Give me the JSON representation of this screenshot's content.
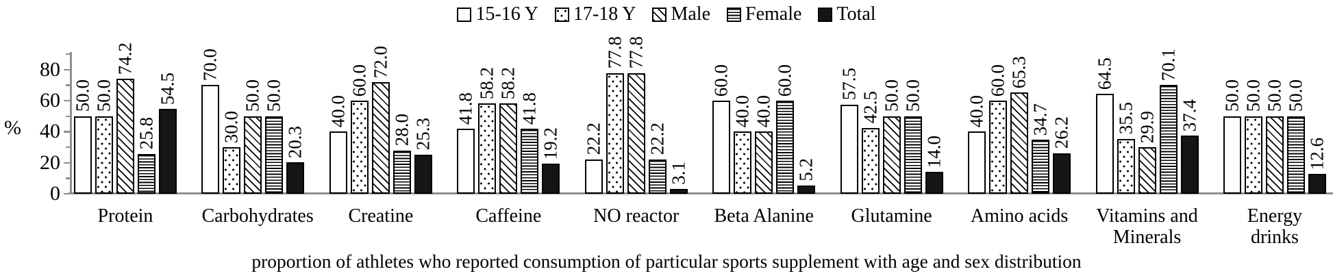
{
  "chart_data": {
    "type": "bar",
    "caption": "proportion of athletes who reported consumption of particular sports supplement with age and sex distribution",
    "ylabel": "%",
    "ylim": [
      0,
      90
    ],
    "y_major_ticks": [
      0,
      20,
      40,
      60,
      80
    ],
    "y_minor_ticks": [
      10,
      30,
      50,
      70,
      90
    ],
    "grid": "off",
    "legend_position": "top-center",
    "categories": [
      [
        "Protein"
      ],
      [
        "Carbohydrates"
      ],
      [
        "Creatine"
      ],
      [
        "Caffeine"
      ],
      [
        "NO reactor"
      ],
      [
        "Beta Alanine"
      ],
      [
        "Glutamine"
      ],
      [
        "Amino acids"
      ],
      [
        "Vitamins and",
        "Minerals"
      ],
      [
        "Energy",
        "drinks"
      ]
    ],
    "series": [
      {
        "name": "15-16 Y",
        "pattern": "plain",
        "values": [
          50.0,
          70.0,
          40.0,
          41.8,
          22.2,
          60.0,
          57.5,
          40.0,
          64.5,
          50.0
        ]
      },
      {
        "name": "17-18 Y",
        "pattern": "dots",
        "values": [
          50.0,
          30.0,
          60.0,
          58.2,
          77.8,
          40.0,
          42.5,
          60.0,
          35.5,
          50.0
        ]
      },
      {
        "name": "Male",
        "pattern": "diagonal-hatch",
        "values": [
          74.2,
          50.0,
          72.0,
          58.2,
          77.8,
          40.0,
          50.0,
          65.3,
          29.9,
          50.0
        ]
      },
      {
        "name": "Female",
        "pattern": "horizontal-lines",
        "values": [
          25.8,
          50.0,
          28.0,
          41.8,
          22.2,
          60.0,
          50.0,
          34.7,
          70.1,
          50.0
        ]
      },
      {
        "name": "Total",
        "pattern": "solid",
        "values": [
          54.5,
          20.3,
          25.3,
          19.2,
          3.1,
          5.2,
          14.0,
          26.2,
          37.4,
          12.6
        ]
      }
    ]
  },
  "colors": {
    "bar_fill": "#ffffff",
    "bar_border": "#000000",
    "solid_fill": "#151515",
    "axis": "#8f8f8f",
    "text": "#000000"
  }
}
